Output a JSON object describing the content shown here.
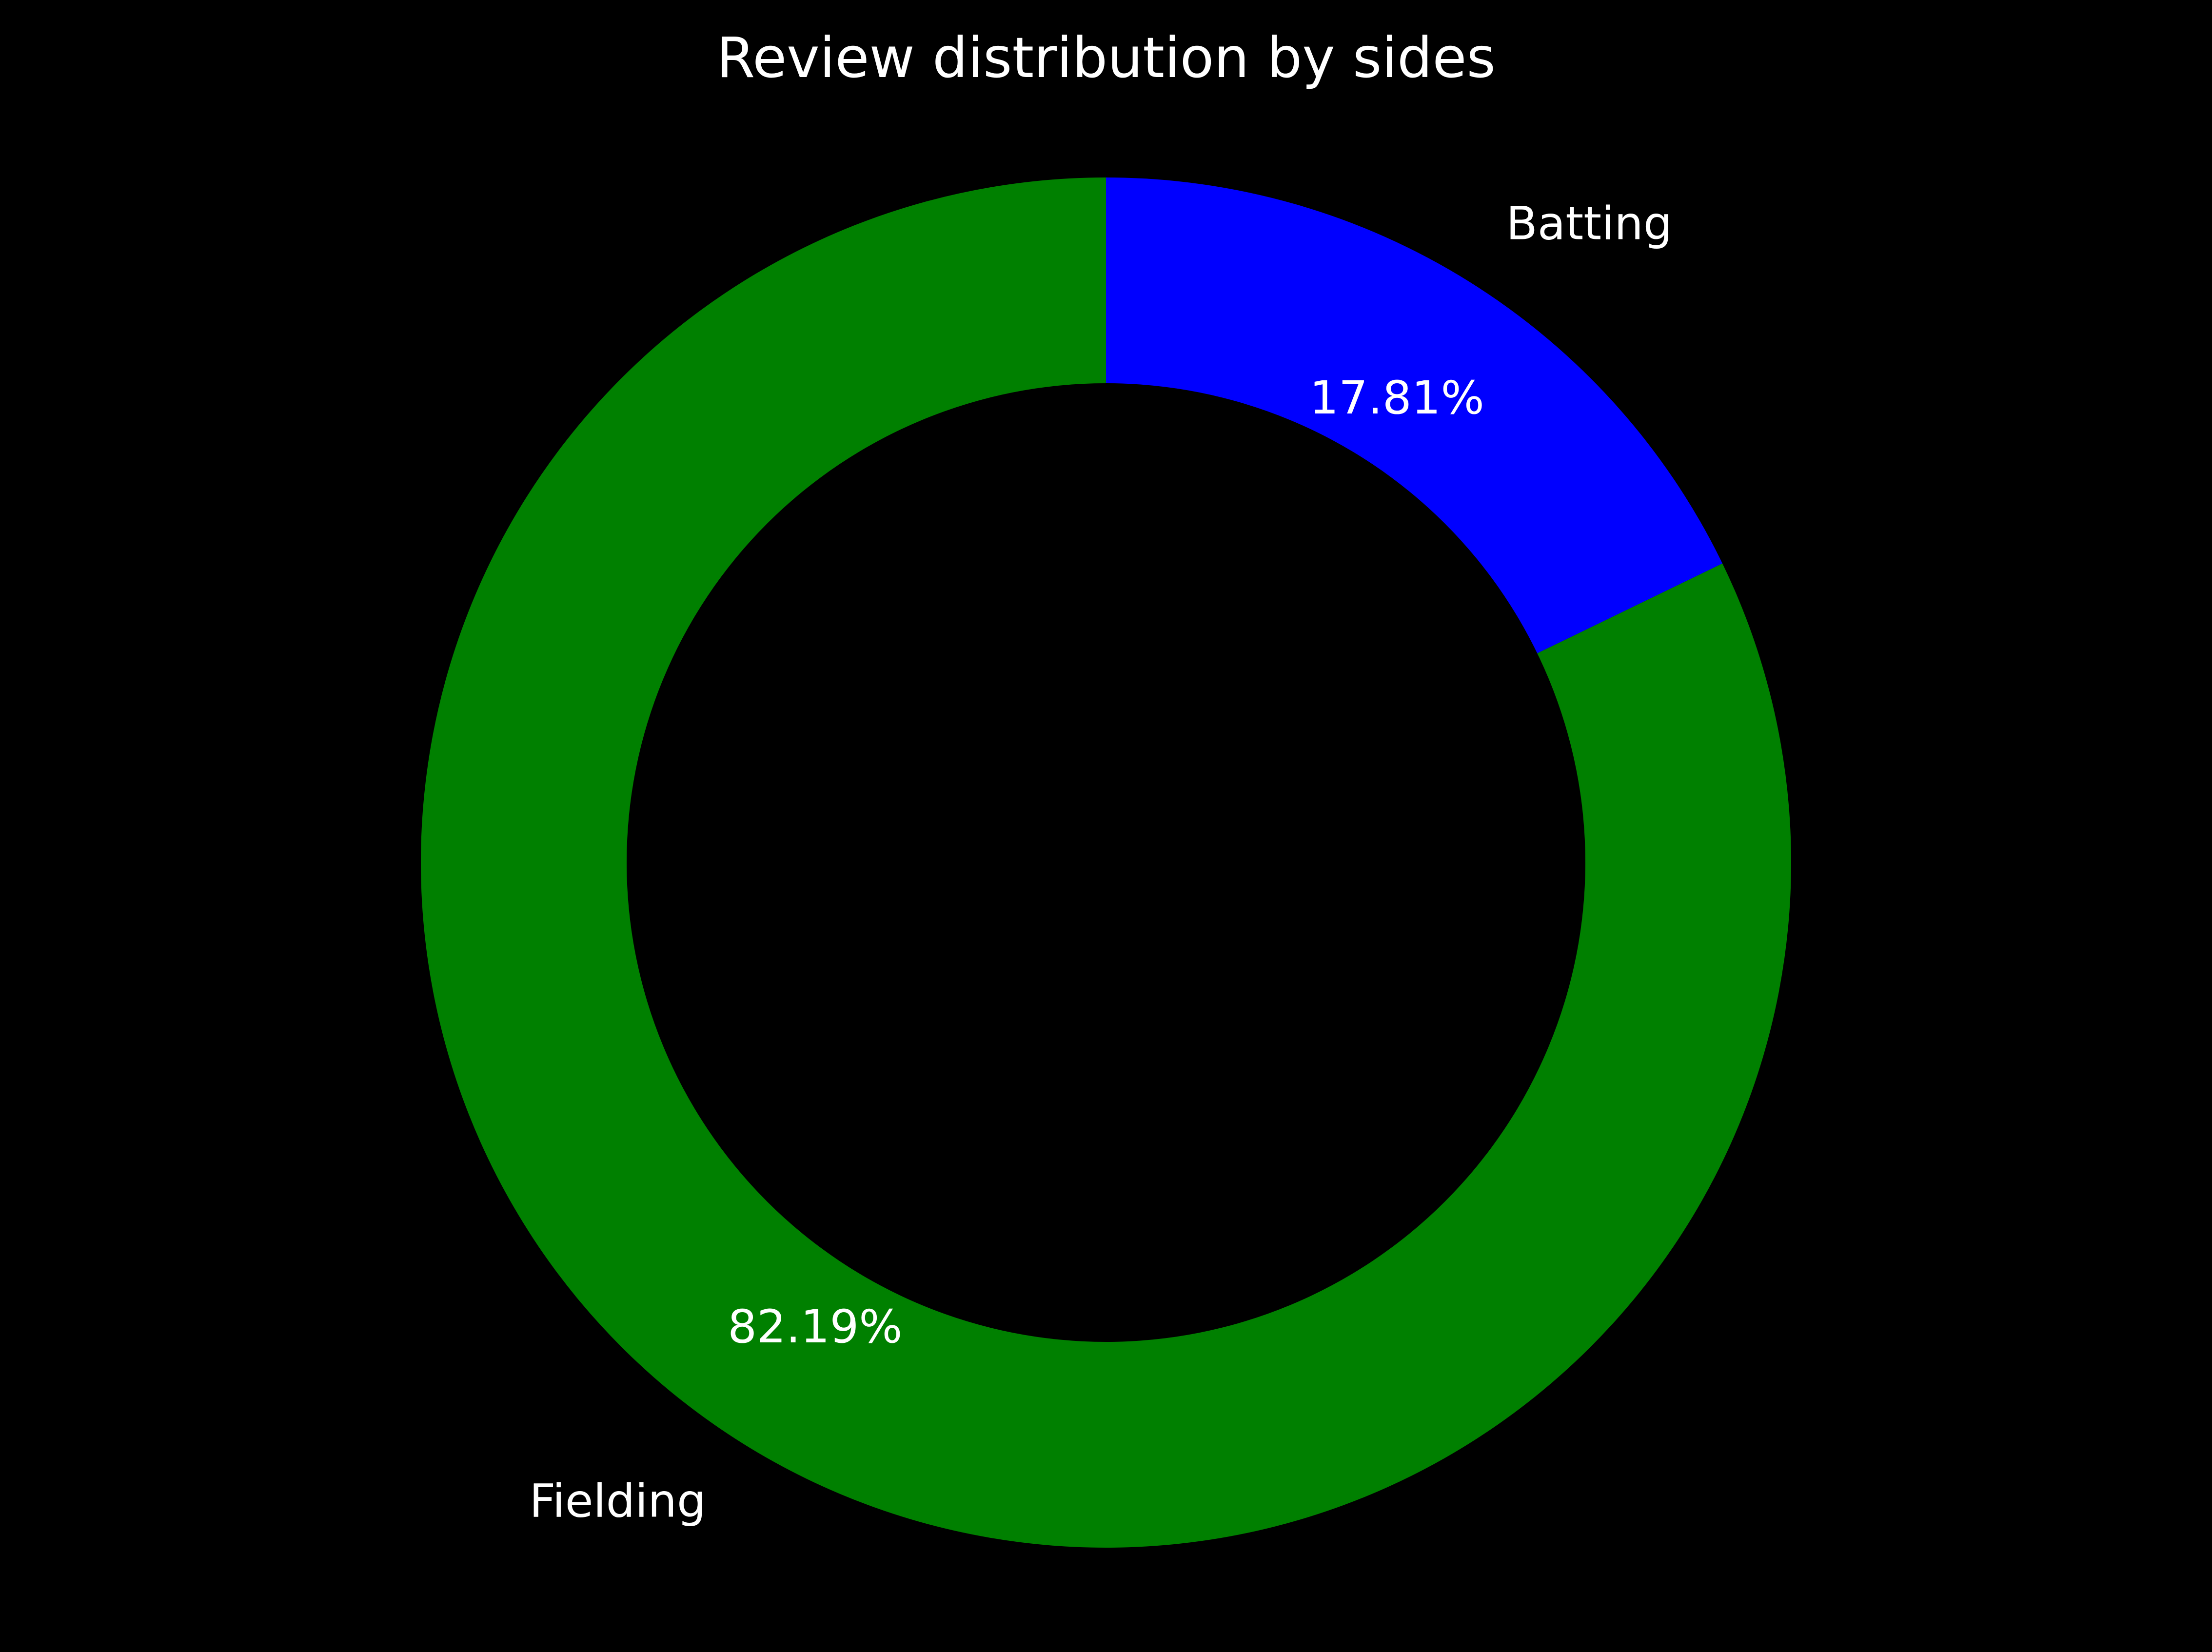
{
  "chart_data": {
    "type": "pie",
    "style": "donut",
    "title": "Review distribution by sides",
    "categories": [
      "Batting",
      "Fielding"
    ],
    "values": [
      17.81,
      82.19
    ],
    "labels": [
      "17.81%",
      "82.19%"
    ],
    "colors": [
      "#0000ff",
      "#008000"
    ],
    "background": "#000000",
    "text_color": "#ffffff",
    "start_angle": "12 o'clock",
    "direction": "clockwise",
    "legend": "none"
  }
}
